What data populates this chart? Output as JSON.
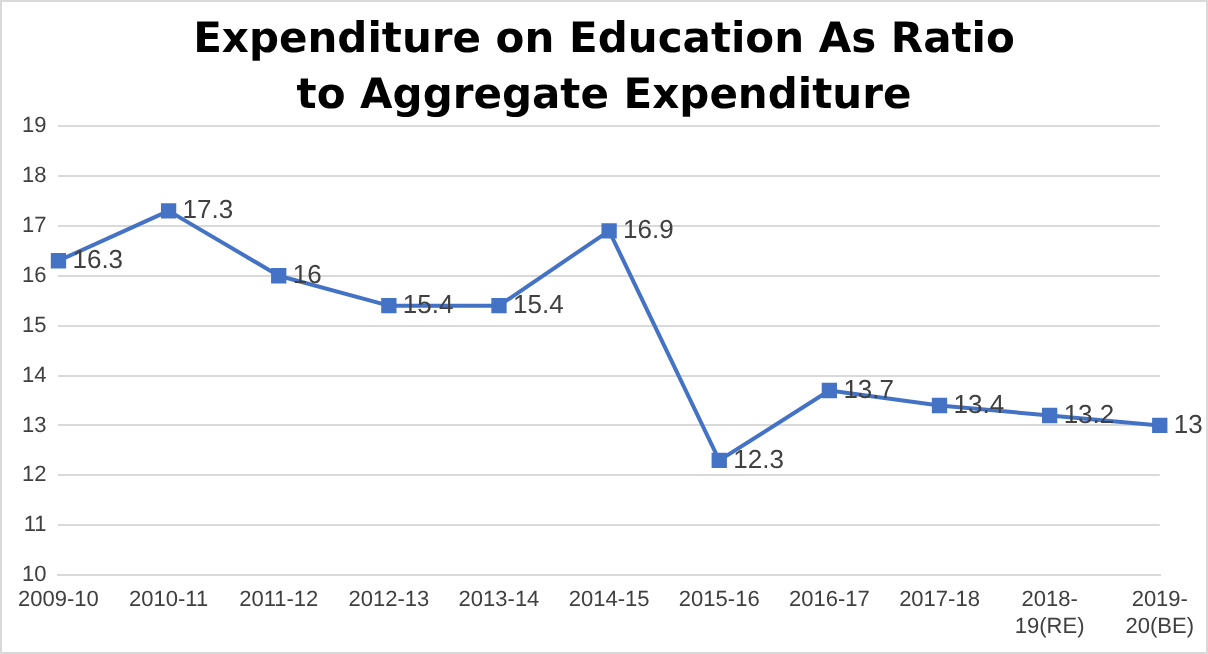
{
  "chart_data": {
    "type": "line",
    "title": "Expenditure on Education As Ratio to Aggregate Expenditure",
    "categories": [
      "2009-10",
      "2010-11",
      "2011-12",
      "2012-13",
      "2013-14",
      "2014-15",
      "2015-16",
      "2016-17",
      "2017-18",
      "2018-19(RE)",
      "2019-20(BE)"
    ],
    "values": [
      16.3,
      17.3,
      16,
      15.4,
      15.4,
      16.9,
      12.3,
      13.7,
      13.4,
      13.2,
      13
    ],
    "color": "#4472c4",
    "marker": "square",
    "ylim": [
      10,
      19
    ],
    "yticks": [
      10,
      11,
      12,
      13,
      14,
      15,
      16,
      17,
      18,
      19
    ],
    "grid": "y",
    "data_labels": true,
    "legend": false
  }
}
